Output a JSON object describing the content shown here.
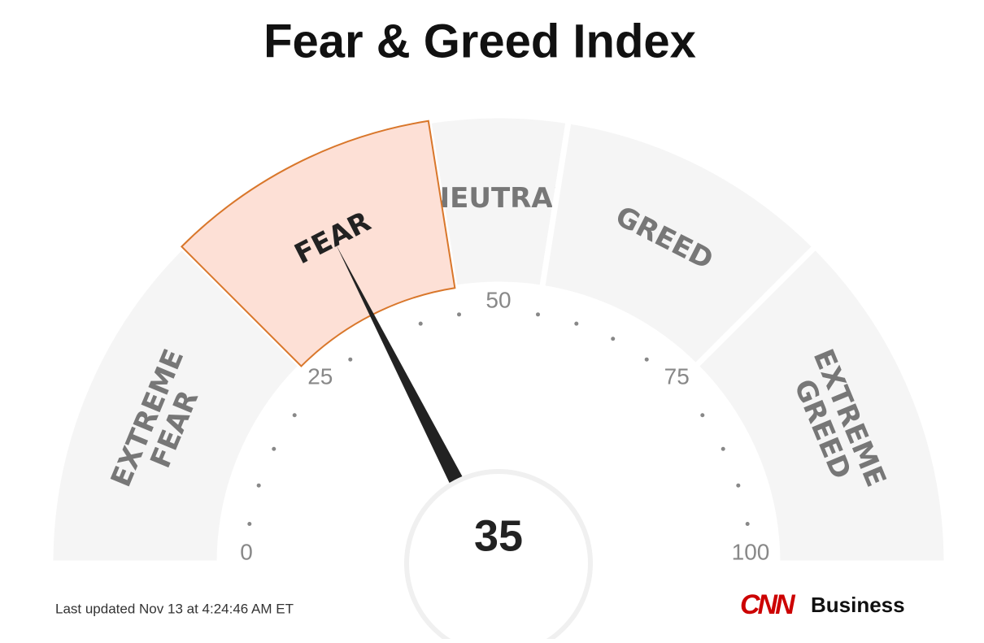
{
  "chart_data": {
    "type": "gauge",
    "title": "Fear & Greed Index",
    "value": 35,
    "range": [
      0,
      100
    ],
    "ticks": [
      0,
      25,
      50,
      75,
      100
    ],
    "minor_ticks": [
      5,
      10,
      15,
      20,
      30,
      35,
      40,
      45,
      55,
      60,
      65,
      70,
      80,
      85,
      90,
      95
    ],
    "bands": [
      {
        "label": [
          "EXTREME",
          "FEAR"
        ],
        "from": 0,
        "to": 25
      },
      {
        "label": [
          "FEAR"
        ],
        "from": 25,
        "to": 45
      },
      {
        "label": [
          "NEUTRAL"
        ],
        "from": 45,
        "to": 55
      },
      {
        "label": [
          "GREED"
        ],
        "from": 55,
        "to": 75
      },
      {
        "label": [
          "EXTREME",
          "GREED"
        ],
        "from": 75,
        "to": 100
      }
    ],
    "active_color": "#fde0d6",
    "active_stroke": "#d9772b",
    "band_color": "#f5f5f5",
    "footer": "Last updated Nov 13 at 4:24:46 AM ET",
    "logo": "CNN",
    "logo_text": "Business"
  }
}
